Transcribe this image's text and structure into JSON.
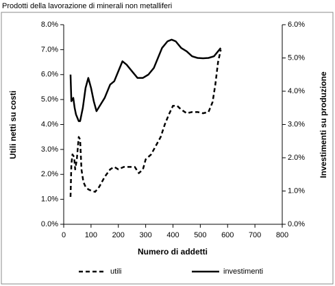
{
  "chart_data": {
    "type": "line",
    "title": "Prodotti della lavorazione di minerali non metalliferi",
    "x_label": "Numero di addetti",
    "y_label": "Utili netti su costi",
    "y2_label": "Investimenti su produzione",
    "xlim": [
      0,
      800
    ],
    "xticks": [
      0,
      100,
      200,
      300,
      400,
      500,
      600,
      700,
      800
    ],
    "ylim": [
      0,
      8
    ],
    "yticks": [
      {
        "value": 0,
        "label": "0.0%"
      },
      {
        "value": 1,
        "label": "1.0%"
      },
      {
        "value": 2,
        "label": "2.0%"
      },
      {
        "value": 3,
        "label": "3.0%"
      },
      {
        "value": 4,
        "label": "4.0%"
      },
      {
        "value": 5,
        "label": "5.0%"
      },
      {
        "value": 6,
        "label": "6.0%"
      },
      {
        "value": 7,
        "label": "7.0%"
      },
      {
        "value": 8,
        "label": "8.0%"
      }
    ],
    "y2lim": [
      0,
      6
    ],
    "y2ticks": [
      {
        "value": 0,
        "label": "0.0%"
      },
      {
        "value": 1,
        "label": "1.0%"
      },
      {
        "value": 2,
        "label": "2.0%"
      },
      {
        "value": 3,
        "label": "3.0%"
      },
      {
        "value": 4,
        "label": "4.0%"
      },
      {
        "value": 5,
        "label": "5.0%"
      },
      {
        "value": 6,
        "label": "6.0%"
      }
    ],
    "legend": "bottom",
    "series": [
      {
        "name": "utili",
        "color": "#000000",
        "dash": "dashed",
        "x": [
          25,
          28,
          32,
          38,
          42,
          48,
          55,
          60,
          65,
          72,
          80,
          90,
          100,
          115,
          130,
          150,
          170,
          185,
          200,
          220,
          240,
          260,
          275,
          290,
          300,
          320,
          340,
          355,
          370,
          385,
          400,
          415,
          430,
          450,
          470,
          490,
          510,
          530,
          545,
          555,
          565,
          575
        ],
        "values": [
          1.1,
          2.4,
          2.8,
          2.7,
          2.2,
          2.6,
          3.5,
          3.4,
          2.2,
          1.7,
          1.5,
          1.4,
          1.35,
          1.3,
          1.5,
          1.9,
          2.2,
          2.3,
          2.2,
          2.3,
          2.3,
          2.3,
          2.05,
          2.2,
          2.6,
          2.8,
          3.2,
          3.5,
          4.0,
          4.4,
          4.75,
          4.75,
          4.6,
          4.45,
          4.5,
          4.5,
          4.45,
          4.5,
          4.9,
          5.6,
          6.5,
          7.0
        ]
      },
      {
        "name": "investimenti",
        "color": "#000000",
        "dash": "solid",
        "axis": "y2",
        "x": [
          25,
          28,
          35,
          40,
          45,
          55,
          60,
          70,
          80,
          90,
          100,
          110,
          120,
          135,
          150,
          170,
          185,
          200,
          215,
          230,
          250,
          270,
          290,
          310,
          330,
          345,
          360,
          380,
          395,
          410,
          430,
          450,
          470,
          490,
          510,
          530,
          550,
          575
        ],
        "values": [
          4.5,
          3.7,
          3.8,
          3.5,
          3.3,
          3.1,
          3.1,
          3.5,
          4.1,
          4.4,
          4.1,
          3.7,
          3.4,
          3.6,
          3.8,
          4.2,
          4.3,
          4.6,
          4.9,
          4.8,
          4.6,
          4.4,
          4.4,
          4.5,
          4.7,
          5.0,
          5.3,
          5.5,
          5.55,
          5.5,
          5.3,
          5.2,
          5.05,
          5.0,
          4.99,
          5.0,
          5.05,
          5.3
        ]
      }
    ]
  }
}
